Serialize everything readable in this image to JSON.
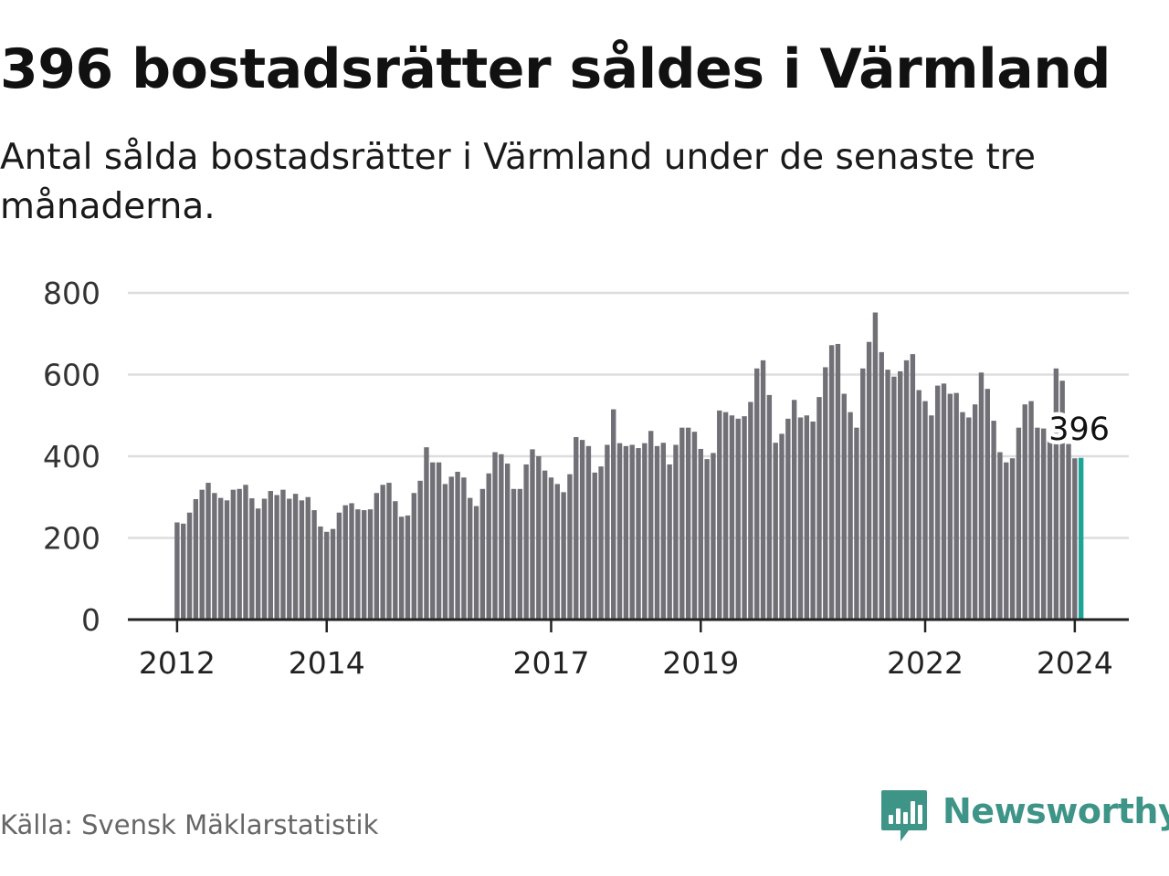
{
  "title": "396 bostadsrätter såldes i Värmland",
  "subtitle": "Antal sålda bostadsrätter i Värmland under de senaste tre månaderna.",
  "source": "Källa: Svensk Mäklarstatistik",
  "brand": {
    "name": "Newsworthy",
    "color": "#3d9487"
  },
  "colors": {
    "bar": "#717076",
    "highlight": "#1ca596",
    "grid": "#dddddd",
    "axis": "#222222",
    "text": "#111111",
    "muted": "#666666"
  },
  "chart_data": {
    "type": "bar",
    "title": "Antal sålda bostadsrätter i Värmland",
    "xlabel": "",
    "ylabel": "",
    "ylim": [
      0,
      800
    ],
    "y_ticks": [
      "0",
      "200",
      "400",
      "600",
      "800"
    ],
    "x_ticks": [
      {
        "label": "2012",
        "index": 0
      },
      {
        "label": "2014",
        "index": 24
      },
      {
        "label": "2017",
        "index": 60
      },
      {
        "label": "2019",
        "index": 84
      },
      {
        "label": "2022",
        "index": 120
      },
      {
        "label": "2024",
        "index": 144
      }
    ],
    "series": [
      {
        "name": "Antal sålda bostadsrätter",
        "values": [
          238,
          235,
          262,
          295,
          318,
          335,
          310,
          298,
          292,
          318,
          320,
          330,
          297,
          272,
          296,
          315,
          305,
          318,
          296,
          308,
          292,
          300,
          268,
          228,
          215,
          222,
          262,
          280,
          285,
          270,
          268,
          270,
          310,
          330,
          335,
          290,
          252,
          255,
          310,
          340,
          422,
          385,
          385,
          332,
          350,
          362,
          348,
          298,
          278,
          320,
          358,
          410,
          405,
          382,
          320,
          320,
          380,
          417,
          400,
          365,
          348,
          332,
          312,
          356,
          447,
          440,
          425,
          360,
          375,
          428,
          515,
          432,
          425,
          428,
          420,
          432,
          462,
          425,
          433,
          380,
          428,
          470,
          470,
          460,
          418,
          393,
          408,
          512,
          508,
          500,
          492,
          498,
          533,
          615,
          635,
          550,
          433,
          455,
          492,
          538,
          495,
          500,
          485,
          545,
          618,
          672,
          675,
          553,
          508,
          470,
          615,
          680,
          752,
          655,
          612,
          595,
          608,
          635,
          650,
          562,
          535,
          500,
          573,
          578,
          553,
          555,
          508,
          495,
          527,
          605,
          565,
          487,
          410,
          385,
          395,
          470,
          527,
          535,
          470,
          468,
          448,
          615,
          585,
          430,
          395,
          396
        ]
      }
    ],
    "highlight_index": 145,
    "annotation": {
      "text": "396",
      "index": 145,
      "value": 396
    }
  }
}
